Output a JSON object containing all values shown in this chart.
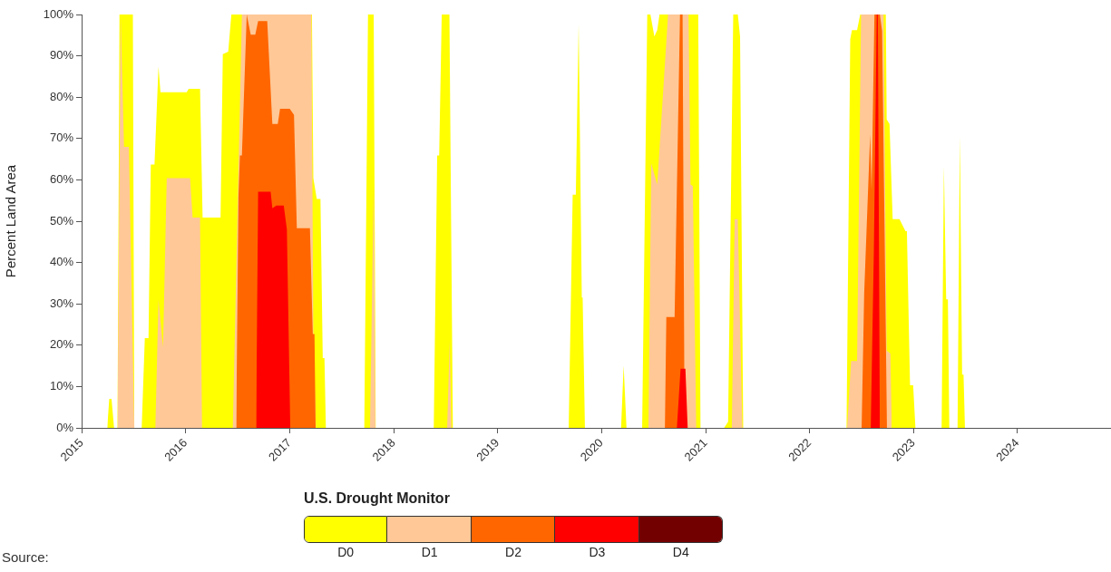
{
  "chart_data": {
    "type": "area",
    "ylabel": "Percent Land Area",
    "legend_title": "U.S. Drought Monitor",
    "legend": "bottom",
    "xlim": [
      "2015-01-01",
      "2024-11-25"
    ],
    "xticks": [
      "2015",
      "2016",
      "2017",
      "2018",
      "2019",
      "2020",
      "2021",
      "2022",
      "2023",
      "2024"
    ],
    "ylim": [
      0,
      100
    ],
    "yticks": [
      {
        "value": 0,
        "label": "0%"
      },
      {
        "value": 10,
        "label": "10%"
      },
      {
        "value": 20,
        "label": "20%"
      },
      {
        "value": 30,
        "label": "30%"
      },
      {
        "value": 40,
        "label": "40%"
      },
      {
        "value": 50,
        "label": "50%"
      },
      {
        "value": 60,
        "label": "60%"
      },
      {
        "value": 70,
        "label": "70%"
      },
      {
        "value": 80,
        "label": "80%"
      },
      {
        "value": 90,
        "label": "90%"
      },
      {
        "value": 100,
        "label": "100%"
      }
    ],
    "annotations": [
      "Source:"
    ],
    "series": [
      {
        "name": "D0",
        "color": "#ffff00",
        "x": [
          "2015-04-01",
          "2015-04-08",
          "2015-04-16",
          "2015-04-25",
          "2015-05-07",
          "2015-05-14",
          "2015-06-30",
          "2015-07-05",
          "2015-07-31",
          "2015-08-11",
          "2015-08-24",
          "2015-09-01",
          "2015-09-14",
          "2015-09-28",
          "2015-10-05",
          "2016-01-05",
          "2016-01-12",
          "2016-02-21",
          "2016-03-01",
          "2016-05-03",
          "2016-05-11",
          "2016-05-30",
          "2016-06-10",
          "2017-03-20",
          "2017-03-25",
          "2017-04-06",
          "2017-04-19",
          "2017-04-27",
          "2017-05-03",
          "2017-05-08",
          "2017-09-20",
          "2017-10-03",
          "2017-10-23",
          "2017-10-30",
          "2018-05-22",
          "2018-06-03",
          "2018-06-10",
          "2018-06-19",
          "2018-07-16",
          "2018-07-28",
          "2019-09-08",
          "2019-09-22",
          "2019-10-03",
          "2019-10-13",
          "2019-10-24",
          "2019-10-27",
          "2019-11-04",
          "2020-03-10",
          "2020-03-19",
          "2020-03-29",
          "2020-05-23",
          "2020-06-10",
          "2020-06-21",
          "2020-07-05",
          "2020-07-15",
          "2020-07-23",
          "2020-12-06",
          "2020-12-14",
          "2021-03-07",
          "2021-03-21",
          "2021-04-08",
          "2021-04-24",
          "2021-05-02",
          "2021-05-13",
          "2022-05-11",
          "2022-05-24",
          "2022-05-30",
          "2022-06-17",
          "2022-06-28",
          "2022-09-26",
          "2022-09-29",
          "2022-10-09",
          "2022-10-20",
          "2022-11-13",
          "2022-12-04",
          "2022-12-09",
          "2022-12-20",
          "2022-12-31",
          "2023-01-08",
          "2023-04-10",
          "2023-04-18",
          "2023-04-26",
          "2023-05-02",
          "2023-05-07",
          "2023-06-05",
          "2023-06-13",
          "2023-06-21",
          "2023-06-26",
          "2023-07-01"
        ],
        "values": [
          0,
          7,
          7,
          0,
          0,
          100,
          100,
          0,
          0,
          21.7,
          21.7,
          63.7,
          63.7,
          87.4,
          81.2,
          81.2,
          82,
          82,
          50.9,
          50.9,
          90.4,
          91,
          100,
          100,
          60.4,
          55.4,
          55.4,
          16.9,
          16.9,
          0,
          0,
          100,
          100,
          0,
          0,
          65.9,
          65.9,
          100,
          100,
          0,
          0,
          56.4,
          56.4,
          97.7,
          31.5,
          31.5,
          0,
          0,
          15.1,
          0,
          0,
          100,
          100,
          94.7,
          96.2,
          100,
          100,
          0,
          0,
          1.5,
          100,
          100,
          94.7,
          0,
          0,
          94,
          96.2,
          96.2,
          100,
          100,
          74.6,
          73.5,
          50.5,
          50.5,
          47.6,
          47.6,
          10.3,
          10.3,
          0,
          0,
          63.3,
          31.1,
          31.1,
          0,
          0,
          70.6,
          12.9,
          12.9,
          0
        ]
      },
      {
        "name": "D1",
        "color": "#ffc896",
        "x": [
          "2015-05-07",
          "2015-05-18",
          "2015-05-30",
          "2015-06-16",
          "2015-07-05",
          "2015-09-17",
          "2015-09-28",
          "2015-10-14",
          "2015-10-27",
          "2016-01-17",
          "2016-01-26",
          "2016-02-21",
          "2016-02-28",
          "2016-06-15",
          "2016-07-17",
          "2017-03-18",
          "2017-03-25",
          "2017-04-03",
          "2017-10-10",
          "2017-10-23",
          "2017-10-29",
          "2018-07-08",
          "2018-07-17",
          "2018-07-23",
          "2020-06-14",
          "2020-06-24",
          "2020-07-15",
          "2020-08-22",
          "2020-11-02",
          "2020-11-09",
          "2020-11-17",
          "2020-11-29",
          "2021-04-03",
          "2021-04-13",
          "2021-04-24",
          "2021-05-10",
          "2022-05-13",
          "2022-05-27",
          "2022-06-17",
          "2022-07-01",
          "2022-09-18",
          "2022-09-29",
          "2022-10-12",
          "2022-10-17"
        ],
        "values": [
          0,
          100,
          68,
          68,
          0,
          0,
          31,
          19.5,
          60.4,
          60.4,
          50.9,
          50.9,
          0,
          0,
          100,
          100,
          23,
          0,
          0,
          59,
          0,
          0,
          21,
          0,
          0,
          64,
          58.9,
          100,
          100,
          58.9,
          58.5,
          0,
          0,
          50.5,
          50.5,
          0,
          0,
          16.2,
          16.2,
          100,
          100,
          18.7,
          18,
          0
        ]
      },
      {
        "name": "D2",
        "color": "#ff6600",
        "x": [
          "2016-06-27",
          "2016-07-05",
          "2016-07-10",
          "2016-07-17",
          "2016-08-03",
          "2016-08-17",
          "2016-09-02",
          "2016-09-12",
          "2016-10-14",
          "2016-11-01",
          "2016-11-20",
          "2016-11-28",
          "2017-01-01",
          "2017-01-16",
          "2017-01-26",
          "2017-03-13",
          "2017-03-23",
          "2017-03-29",
          "2017-04-02",
          "2020-08-11",
          "2020-08-16",
          "2020-09-14",
          "2020-10-03",
          "2020-10-12",
          "2020-10-19",
          "2022-07-03",
          "2022-07-12",
          "2022-08-02",
          "2022-08-07",
          "2022-08-17",
          "2022-09-05",
          "2022-09-13",
          "2022-09-30"
        ],
        "values": [
          0,
          56,
          65.9,
          65.9,
          100,
          95.1,
          95.1,
          98.4,
          98.4,
          73.5,
          73.5,
          77.2,
          77.2,
          75.7,
          48.3,
          48.3,
          22.7,
          22.7,
          0,
          0,
          26.8,
          26.8,
          100,
          100,
          0,
          0,
          32.6,
          71,
          57.5,
          100,
          100,
          96,
          0
        ]
      },
      {
        "name": "D3",
        "color": "#ff0000",
        "x": [
          "2016-09-05",
          "2016-09-12",
          "2016-10-26",
          "2016-11-01",
          "2016-11-15",
          "2016-12-11",
          "2016-12-22",
          "2017-01-03",
          "2020-09-22",
          "2020-10-05",
          "2020-10-22",
          "2020-10-30",
          "2022-08-04",
          "2022-08-15",
          "2022-08-25",
          "2022-08-29",
          "2022-09-05"
        ],
        "values": [
          0,
          57.1,
          57.1,
          53.1,
          53.8,
          53.8,
          48,
          0,
          0,
          14.3,
          14.3,
          0,
          0,
          43,
          100,
          100,
          0
        ]
      },
      {
        "name": "D4",
        "color": "#730000"
      }
    ]
  }
}
